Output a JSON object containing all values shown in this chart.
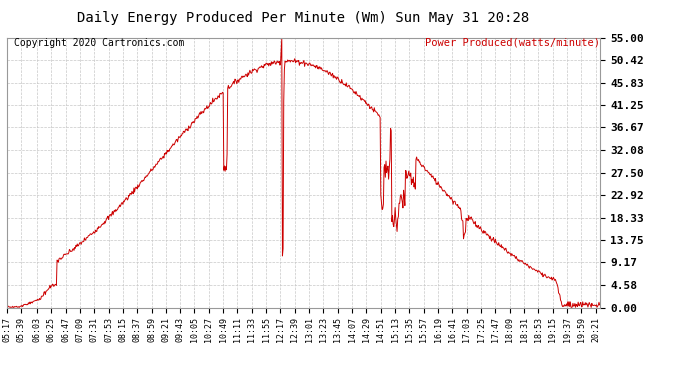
{
  "title": "Daily Energy Produced Per Minute (Wm) Sun May 31 20:28",
  "copyright": "Copyright 2020 Cartronics.com",
  "legend_label": "Power Produced(watts/minute)",
  "yticks": [
    0.0,
    4.58,
    9.17,
    13.75,
    18.33,
    22.92,
    27.5,
    32.08,
    36.67,
    41.25,
    45.83,
    50.42,
    55.0
  ],
  "ymin": 0.0,
  "ymax": 55.0,
  "line_color": "#cc0000",
  "bg_color": "#ffffff",
  "grid_color": "#c8c8c8",
  "title_color": "#000000",
  "copyright_color": "#000000",
  "legend_color": "#cc0000",
  "xtick_labels": [
    "05:17",
    "05:39",
    "06:03",
    "06:25",
    "06:47",
    "07:09",
    "07:31",
    "07:53",
    "08:15",
    "08:37",
    "08:59",
    "09:21",
    "09:43",
    "10:05",
    "10:27",
    "10:49",
    "11:11",
    "11:33",
    "11:55",
    "12:17",
    "12:39",
    "13:01",
    "13:23",
    "13:45",
    "14:07",
    "14:29",
    "14:51",
    "15:13",
    "15:35",
    "15:57",
    "16:19",
    "16:41",
    "17:03",
    "17:25",
    "17:47",
    "18:09",
    "18:31",
    "18:53",
    "19:15",
    "19:37",
    "19:59",
    "20:21"
  ],
  "figwidth": 6.9,
  "figheight": 3.75,
  "dpi": 100
}
